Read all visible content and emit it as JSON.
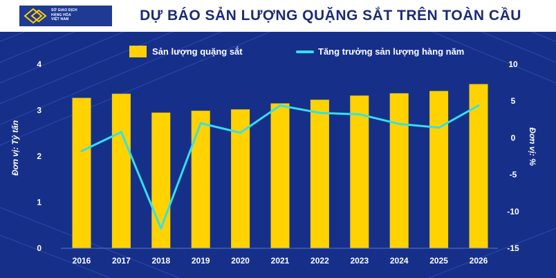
{
  "logo": {
    "line1": "SỞ GIAO DỊCH",
    "line2": "HÀNG HÓA",
    "line3": "VIỆT NAM"
  },
  "colors": {
    "background": "#16308a",
    "bar": "#ffd200",
    "line": "#33e0f0",
    "title": "#1b2b78",
    "text": "#ffffff"
  },
  "chart_data": {
    "type": "bar",
    "title": "DỰ BÁO SẢN LƯỢNG QUẶNG SẮT TRÊN TOÀN CẦU",
    "categories": [
      "2016",
      "2017",
      "2018",
      "2019",
      "2020",
      "2021",
      "2022",
      "2023",
      "2024",
      "2025",
      "2026"
    ],
    "series": [
      {
        "name": "Sản lượng quặng sắt",
        "type": "bar",
        "axis": "left",
        "values": [
          3.27,
          3.36,
          2.95,
          2.99,
          3.02,
          3.15,
          3.23,
          3.32,
          3.37,
          3.42,
          3.57
        ]
      },
      {
        "name": "Tăng trưởng sản lượng hàng năm",
        "type": "line",
        "axis": "right",
        "values": [
          -1.8,
          0.8,
          -12.3,
          2.0,
          0.7,
          4.4,
          3.4,
          3.2,
          1.9,
          1.4,
          4.4
        ]
      }
    ],
    "ylabel": "Đơn vị: Tỷ tấn",
    "y2label": "Đơn vị: %",
    "ylim": [
      0,
      4
    ],
    "y2lim": [
      -15,
      10
    ],
    "yticks": [
      "0",
      "1",
      "2",
      "3",
      "4"
    ],
    "y2ticks": [
      "-15",
      "-10",
      "-5",
      "0",
      "5",
      "10"
    ],
    "legend": "top"
  }
}
